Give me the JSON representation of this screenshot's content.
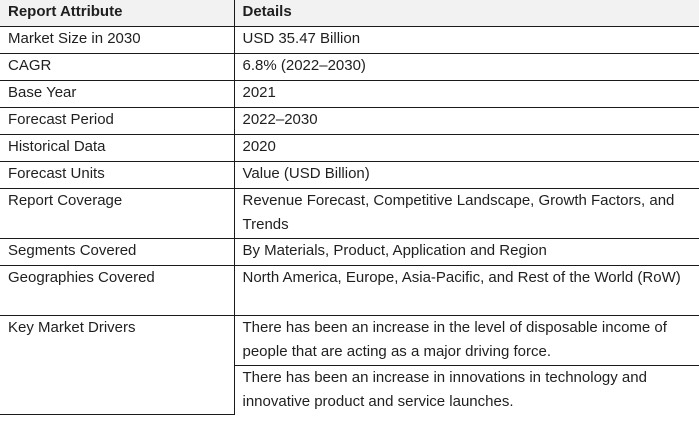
{
  "table": {
    "headers": [
      "Report Attribute",
      "Details"
    ],
    "rows": [
      {
        "attribute": "Market Size in 2030",
        "details": [
          "USD 35.47 Billion"
        ]
      },
      {
        "attribute": "CAGR",
        "details": [
          "6.8% (2022–2030)"
        ]
      },
      {
        "attribute": "Base Year",
        "details": [
          "2021"
        ]
      },
      {
        "attribute": "Forecast Period",
        "details": [
          "2022–2030"
        ]
      },
      {
        "attribute": "Historical Data",
        "details": [
          "2020"
        ]
      },
      {
        "attribute": "Forecast Units",
        "details": [
          "Value (USD Billion)"
        ]
      },
      {
        "attribute": "Report Coverage",
        "details": [
          "Revenue Forecast, Competitive Landscape, Growth Factors, and Trends"
        ]
      },
      {
        "attribute": "Segments Covered",
        "details": [
          "By Materials, Product, Application and Region"
        ]
      },
      {
        "attribute": "Geographies Covered",
        "details": [
          "North America, Europe, Asia-Pacific, and Rest of the World (RoW)"
        ]
      },
      {
        "attribute": "Key Market Drivers",
        "details": [
          "There has been an increase in the level of disposable income of people that are acting as a major driving force.",
          "There has been an increase in innovations in technology and innovative product and service launches."
        ]
      }
    ]
  }
}
